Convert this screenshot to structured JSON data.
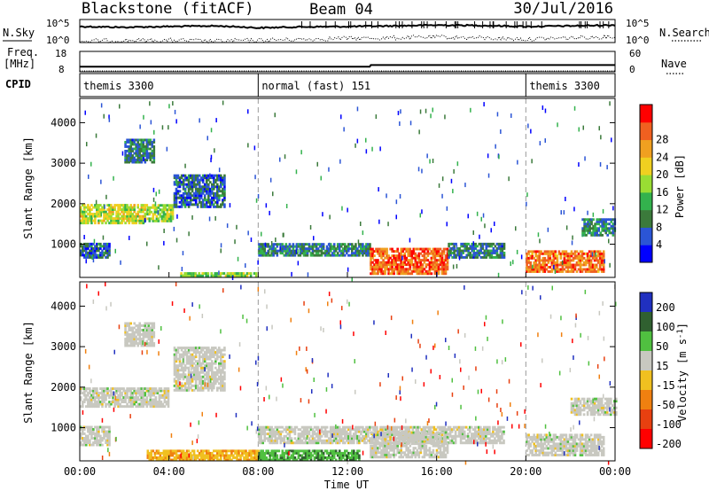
{
  "header": {
    "station": "Blackstone (fitACF)",
    "beam": "Beam 04",
    "date": "30/Jul/2016"
  },
  "left_labels": {
    "nsky": "N.Sky",
    "freq": "Freq.",
    "freq_unit": "[MHz]",
    "cpid": "CPID"
  },
  "right_labels": {
    "nsearch": "N.Search",
    "nave": "Nave"
  },
  "noise_axis": {
    "left_top": "10^5",
    "left_bottom": "10^0",
    "right_top": "10^5",
    "right_bottom": "10^0"
  },
  "freq_axis": {
    "top": "18",
    "bottom": "8"
  },
  "nave_axis": {
    "top": "60",
    "bottom": "0"
  },
  "cpid_segments": [
    {
      "label": "themis 3300",
      "start_h": 0,
      "end_h": 8
    },
    {
      "label": "normal (fast) 151",
      "start_h": 8,
      "end_h": 20
    },
    {
      "label": "themis 3300",
      "start_h": 20,
      "end_h": 24
    }
  ],
  "x_axis": {
    "title": "Time UT",
    "ticks": [
      "00:00",
      "04:00",
      "08:00",
      "12:00",
      "16:00",
      "20:00",
      "00:00"
    ]
  },
  "colors": {
    "power": [
      "#0000ff",
      "#2b55d6",
      "#3b7a3b",
      "#33b24d",
      "#99dd33",
      "#f0d020",
      "#f0a020",
      "#f06020",
      "#ff0000"
    ],
    "velocity": [
      "#2030c0",
      "#306030",
      "#50c040",
      "#c8c8c0",
      "#f0c020",
      "#f08010",
      "#e84010",
      "#ff0000"
    ]
  },
  "chart_data": [
    {
      "type": "line",
      "name": "noise",
      "y_axis": "log scale, 10^0 to 10^5",
      "series": [
        {
          "x": [
            0,
            2,
            4,
            6,
            8,
            10,
            12,
            14,
            16,
            18,
            20,
            22,
            24
          ],
          "values": [
            3000,
            2000,
            3000,
            4000,
            1500,
            2500,
            3000,
            4000,
            6000,
            5000,
            3000,
            4000,
            6000
          ]
        },
        {
          "x": [
            0,
            2,
            4,
            6,
            8,
            10,
            12,
            14,
            16,
            18,
            20,
            22,
            24
          ],
          "values": [
            2,
            3,
            3,
            2,
            3,
            5,
            8,
            10,
            15,
            10,
            5,
            10,
            20
          ]
        }
      ]
    },
    {
      "type": "line",
      "name": "freq-nave",
      "series": [
        {
          "x": [
            0,
            13,
            13.05,
            24
          ],
          "values": [
            10.5,
            10.5,
            11.3,
            11.3
          ]
        },
        {
          "x": [
            0,
            24
          ],
          "values": [
            0,
            0
          ]
        }
      ]
    },
    {
      "type": "heatmap",
      "title": "",
      "xlabel": "Time UT",
      "ylabel": "Slant Range [km]",
      "xlim": [
        0,
        24
      ],
      "ylim": [
        180,
        4600
      ],
      "yticks": [
        "1000",
        "2000",
        "3000",
        "4000"
      ],
      "colorbar": {
        "label": "Power [dB]",
        "ticks": [
          "4",
          "8",
          "12",
          "16",
          "20",
          "24",
          "28"
        ]
      },
      "regions": [
        {
          "t": [
            0.0,
            3.0
          ],
          "r": [
            1500,
            1950
          ],
          "value": 18
        },
        {
          "t": [
            3.0,
            4.2
          ],
          "r": [
            1550,
            1950
          ],
          "value": 16
        },
        {
          "t": [
            4.2,
            6.5
          ],
          "r": [
            1900,
            2700
          ],
          "value": 8
        },
        {
          "t": [
            2.0,
            3.3
          ],
          "r": [
            3000,
            3600
          ],
          "value": 9
        },
        {
          "t": [
            0.0,
            1.3
          ],
          "r": [
            650,
            1000
          ],
          "value": 8
        },
        {
          "t": [
            4.5,
            8.0
          ],
          "r": [
            200,
            280
          ],
          "value": 16
        },
        {
          "t": [
            8.0,
            13.0
          ],
          "r": [
            700,
            1000
          ],
          "value": 10
        },
        {
          "t": [
            13.0,
            16.5
          ],
          "r": [
            250,
            900
          ],
          "value": 26
        },
        {
          "t": [
            16.5,
            19.0
          ],
          "r": [
            650,
            1000
          ],
          "value": 9
        },
        {
          "t": [
            20.0,
            23.5
          ],
          "r": [
            300,
            800
          ],
          "value": 25
        },
        {
          "t": [
            22.5,
            24.0
          ],
          "r": [
            1200,
            1600
          ],
          "value": 10
        }
      ]
    },
    {
      "type": "heatmap",
      "title": "",
      "xlabel": "Time UT",
      "ylabel": "Slant Range [km]",
      "xlim": [
        0,
        24
      ],
      "ylim": [
        180,
        4600
      ],
      "yticks": [
        "1000",
        "2000",
        "3000",
        "4000"
      ],
      "colorbar": {
        "label": "Velocity [m s^-1]",
        "ticks": [
          "200",
          "100",
          "50",
          "15",
          "-15",
          "-50",
          "-100",
          "-200"
        ]
      },
      "regions": [
        {
          "t": [
            0.0,
            4.0
          ],
          "r": [
            1500,
            1950
          ],
          "value": 0
        },
        {
          "t": [
            4.2,
            6.5
          ],
          "r": [
            1900,
            3000
          ],
          "value": 0
        },
        {
          "t": [
            2.0,
            3.3
          ],
          "r": [
            3000,
            3600
          ],
          "value": 0
        },
        {
          "t": [
            0.0,
            1.3
          ],
          "r": [
            550,
            1000
          ],
          "value": 0
        },
        {
          "t": [
            3.0,
            8.0
          ],
          "r": [
            180,
            450
          ],
          "value": -50
        },
        {
          "t": [
            8.0,
            12.5
          ],
          "r": [
            180,
            450
          ],
          "value": 50
        },
        {
          "t": [
            8.0,
            19.0
          ],
          "r": [
            600,
            1000
          ],
          "value": 0
        },
        {
          "t": [
            13.0,
            16.5
          ],
          "r": [
            250,
            900
          ],
          "value": 0
        },
        {
          "t": [
            20.0,
            23.5
          ],
          "r": [
            300,
            800
          ],
          "value": 0
        },
        {
          "t": [
            22.0,
            24.0
          ],
          "r": [
            1300,
            1700
          ],
          "value": 0
        }
      ]
    }
  ]
}
